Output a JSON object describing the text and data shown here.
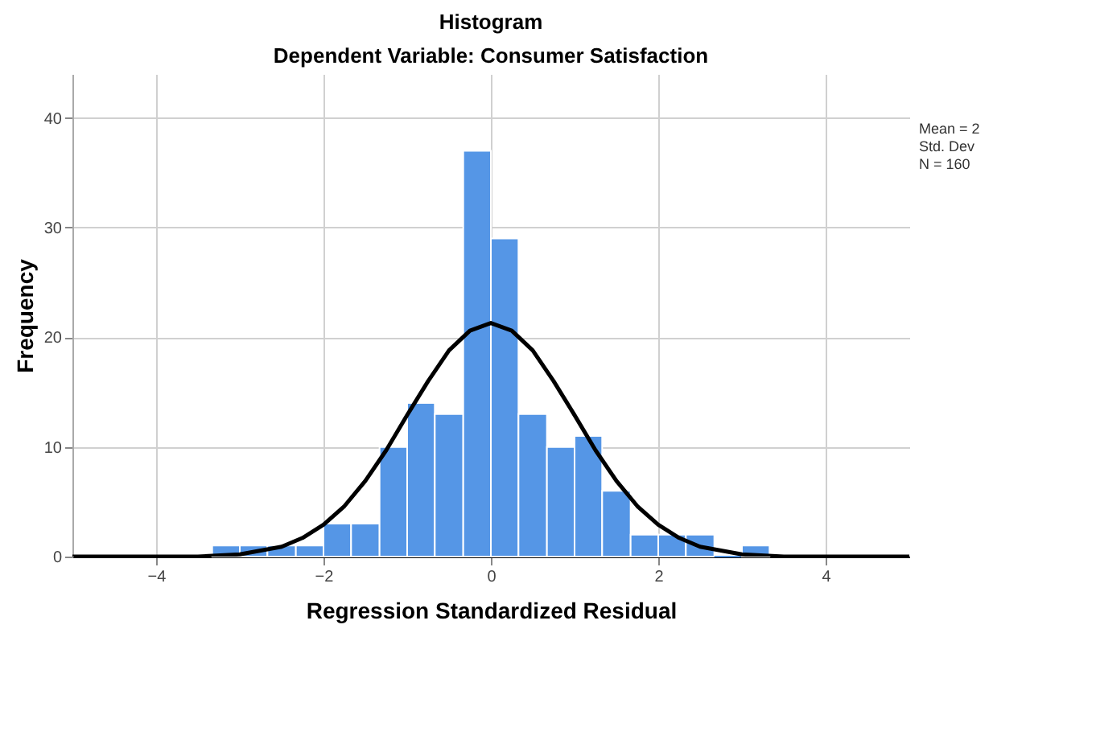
{
  "chart_data": {
    "type": "histogram",
    "title": "Histogram",
    "subtitle": "Dependent Variable: Consumer Satisfaction",
    "xlabel": "Regression Standardized Residual",
    "ylabel": "Frequency",
    "xlim": [
      -5,
      5
    ],
    "xticks": [
      -4,
      -2,
      0,
      2,
      4
    ],
    "ylim": [
      0,
      44
    ],
    "yticks": [
      0,
      10,
      20,
      30,
      40
    ],
    "grid": true,
    "series": [
      {
        "type": "histogram",
        "color": "#5596e6",
        "bins": [
          -3.33,
          -3.0,
          -2.67,
          -2.33,
          -2.0,
          -1.67,
          -1.33,
          -1.0,
          -0.67,
          -0.33,
          0.0,
          0.33,
          0.67,
          1.0,
          1.33,
          1.67,
          2.0,
          2.33,
          2.67,
          3.0,
          3.33
        ],
        "values": [
          1,
          1,
          1,
          1,
          3,
          3,
          10,
          14,
          13,
          37,
          29,
          13,
          10,
          11,
          6,
          2,
          2,
          2,
          0,
          1
        ]
      },
      {
        "type": "line",
        "color": "#000000",
        "x": [
          -5,
          -4,
          -3.5,
          -3,
          -2.5,
          -2.25,
          -2,
          -1.75,
          -1.5,
          -1.25,
          -1,
          -0.75,
          -0.5,
          -0.25,
          0,
          0.25,
          0.5,
          0.75,
          1,
          1.25,
          1.5,
          1.75,
          2,
          2.25,
          2.5,
          3,
          3.5,
          4,
          5
        ],
        "values": [
          0,
          0,
          0,
          0.2,
          0.9,
          1.7,
          2.9,
          4.6,
          6.9,
          9.7,
          12.9,
          16.0,
          18.8,
          20.6,
          21.3,
          20.6,
          18.8,
          16.0,
          12.9,
          9.7,
          6.9,
          4.6,
          2.9,
          1.7,
          0.9,
          0.2,
          0,
          0,
          0
        ]
      }
    ],
    "annotations": [
      "Mean = 2",
      "Std. Dev",
      "N = 160"
    ]
  }
}
